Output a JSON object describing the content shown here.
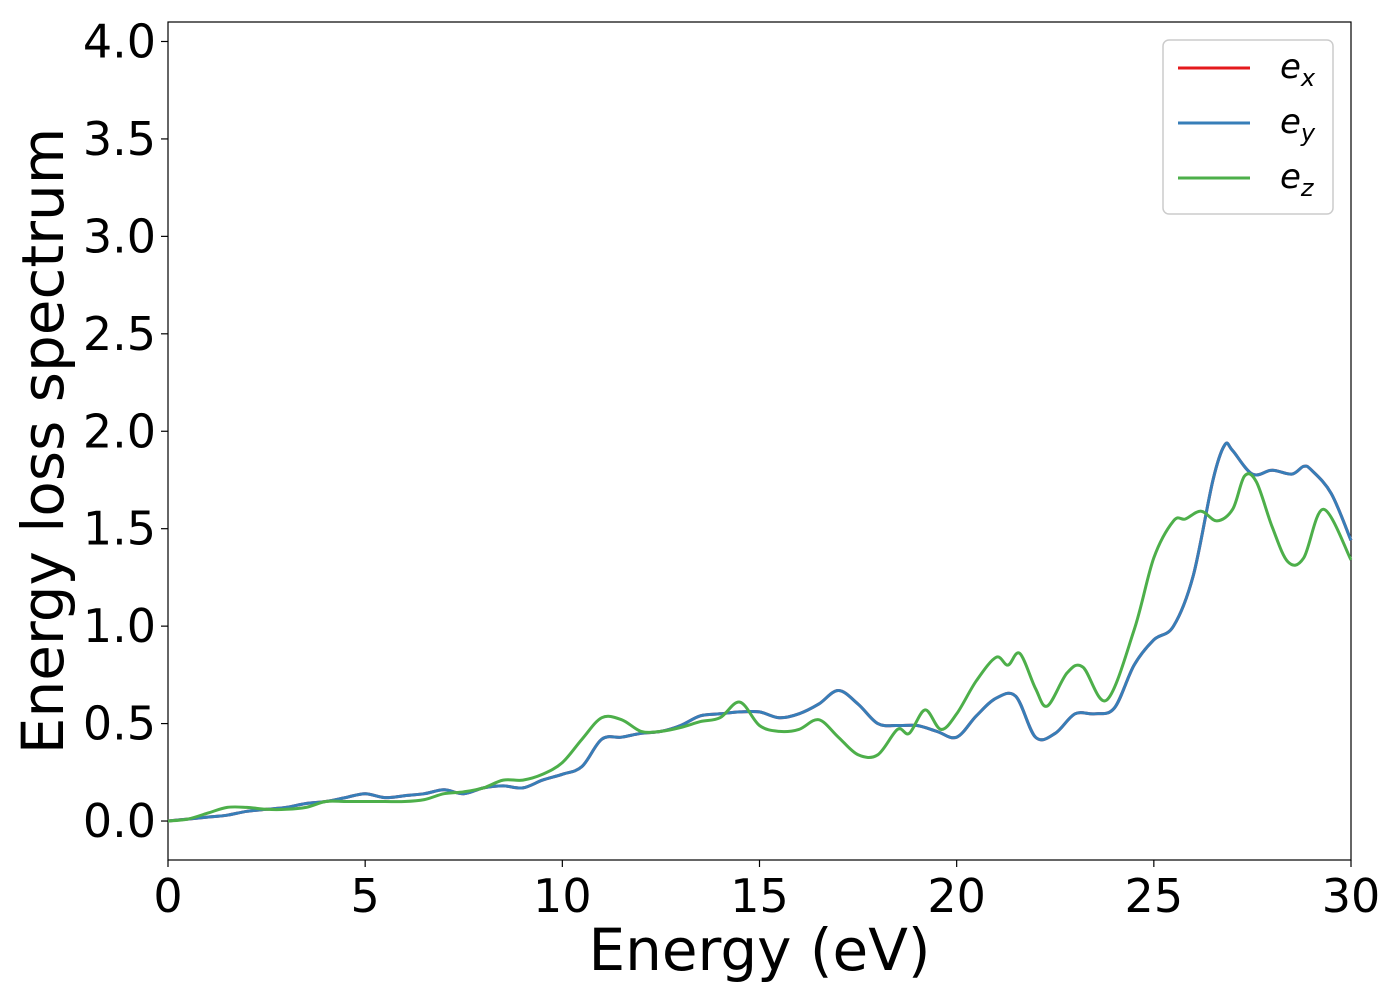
{
  "chart_data": {
    "type": "line",
    "xlabel": "Energy (eV)",
    "ylabel": "Energy loss spectrum",
    "xlim": [
      0,
      30
    ],
    "ylim": [
      -0.2,
      4.1
    ],
    "xticks": [
      0,
      5,
      10,
      15,
      20,
      25,
      30
    ],
    "yticks": [
      0.0,
      0.5,
      1.0,
      1.5,
      2.0,
      2.5,
      3.0,
      3.5,
      4.0
    ],
    "ytick_labels": [
      "0.0",
      "0.5",
      "1.0",
      "1.5",
      "2.0",
      "2.5",
      "3.0",
      "3.5",
      "4.0"
    ],
    "grid": false,
    "legend_position": "top-right",
    "series": [
      {
        "name": "e",
        "subscript": "x",
        "color": "#e41a1c",
        "x": [
          0,
          0.5,
          1,
          1.5,
          2,
          2.5,
          3,
          3.5,
          4,
          4.5,
          5,
          5.5,
          6,
          6.5,
          7,
          7.5,
          8,
          8.5,
          9,
          9.5,
          10,
          10.5,
          11,
          11.5,
          12,
          12.5,
          13,
          13.5,
          14,
          14.5,
          15,
          15.5,
          16,
          16.5,
          17,
          17.5,
          18,
          18.5,
          19,
          19.5,
          20,
          20.5,
          21,
          21.5,
          22,
          22.5,
          23,
          23.5,
          24,
          24.5,
          25,
          25.5,
          26,
          26.5,
          26.8,
          27,
          27.5,
          28,
          28.5,
          28.8,
          29,
          29.5,
          30
        ],
        "y": [
          0,
          0.01,
          0.02,
          0.03,
          0.05,
          0.06,
          0.07,
          0.09,
          0.1,
          0.12,
          0.14,
          0.12,
          0.13,
          0.14,
          0.16,
          0.14,
          0.17,
          0.18,
          0.17,
          0.21,
          0.24,
          0.28,
          0.42,
          0.43,
          0.45,
          0.46,
          0.49,
          0.54,
          0.55,
          0.56,
          0.56,
          0.53,
          0.55,
          0.6,
          0.67,
          0.6,
          0.5,
          0.49,
          0.49,
          0.46,
          0.43,
          0.54,
          0.63,
          0.64,
          0.43,
          0.45,
          0.55,
          0.55,
          0.58,
          0.8,
          0.93,
          1.0,
          1.26,
          1.75,
          1.93,
          1.9,
          1.78,
          1.8,
          1.78,
          1.82,
          1.8,
          1.68,
          1.44
        ]
      },
      {
        "name": "e",
        "subscript": "y",
        "color": "#377eb8",
        "x": [
          0,
          0.5,
          1,
          1.5,
          2,
          2.5,
          3,
          3.5,
          4,
          4.5,
          5,
          5.5,
          6,
          6.5,
          7,
          7.5,
          8,
          8.5,
          9,
          9.5,
          10,
          10.5,
          11,
          11.5,
          12,
          12.5,
          13,
          13.5,
          14,
          14.5,
          15,
          15.5,
          16,
          16.5,
          17,
          17.5,
          18,
          18.5,
          19,
          19.5,
          20,
          20.5,
          21,
          21.5,
          22,
          22.5,
          23,
          23.5,
          24,
          24.5,
          25,
          25.5,
          26,
          26.5,
          26.8,
          27,
          27.5,
          28,
          28.5,
          28.8,
          29,
          29.5,
          30
        ],
        "y": [
          0,
          0.01,
          0.02,
          0.03,
          0.05,
          0.06,
          0.07,
          0.09,
          0.1,
          0.12,
          0.14,
          0.12,
          0.13,
          0.14,
          0.16,
          0.14,
          0.17,
          0.18,
          0.17,
          0.21,
          0.24,
          0.28,
          0.42,
          0.43,
          0.45,
          0.46,
          0.49,
          0.54,
          0.55,
          0.56,
          0.56,
          0.53,
          0.55,
          0.6,
          0.67,
          0.6,
          0.5,
          0.49,
          0.49,
          0.46,
          0.43,
          0.54,
          0.63,
          0.64,
          0.43,
          0.45,
          0.55,
          0.55,
          0.58,
          0.8,
          0.93,
          1.0,
          1.26,
          1.75,
          1.93,
          1.9,
          1.78,
          1.8,
          1.78,
          1.82,
          1.8,
          1.68,
          1.44
        ]
      },
      {
        "name": "e",
        "subscript": "z",
        "color": "#4daf4a",
        "x": [
          0,
          0.5,
          1,
          1.5,
          2,
          2.5,
          3,
          3.5,
          4,
          4.5,
          5,
          5.5,
          6,
          6.5,
          7,
          7.5,
          8,
          8.5,
          9,
          9.5,
          10,
          10.5,
          11,
          11.5,
          12,
          12.5,
          13,
          13.5,
          14,
          14.5,
          15,
          15.5,
          16,
          16.5,
          17,
          17.5,
          18,
          18.5,
          18.8,
          19.2,
          19.6,
          20,
          20.5,
          21,
          21.3,
          21.6,
          22,
          22.3,
          22.8,
          23.2,
          23.8,
          24.5,
          25,
          25.5,
          25.8,
          26.2,
          26.6,
          27,
          27.3,
          27.6,
          28,
          28.4,
          28.8,
          29.3,
          30
        ],
        "y": [
          0,
          0.01,
          0.04,
          0.07,
          0.07,
          0.06,
          0.06,
          0.07,
          0.1,
          0.1,
          0.1,
          0.1,
          0.1,
          0.11,
          0.14,
          0.15,
          0.17,
          0.21,
          0.21,
          0.24,
          0.3,
          0.42,
          0.53,
          0.52,
          0.46,
          0.46,
          0.48,
          0.51,
          0.53,
          0.61,
          0.49,
          0.46,
          0.47,
          0.52,
          0.43,
          0.34,
          0.34,
          0.47,
          0.45,
          0.57,
          0.47,
          0.55,
          0.72,
          0.84,
          0.8,
          0.86,
          0.68,
          0.59,
          0.76,
          0.79,
          0.62,
          0.98,
          1.35,
          1.54,
          1.55,
          1.59,
          1.54,
          1.6,
          1.77,
          1.74,
          1.51,
          1.33,
          1.35,
          1.6,
          1.34
        ]
      }
    ]
  }
}
